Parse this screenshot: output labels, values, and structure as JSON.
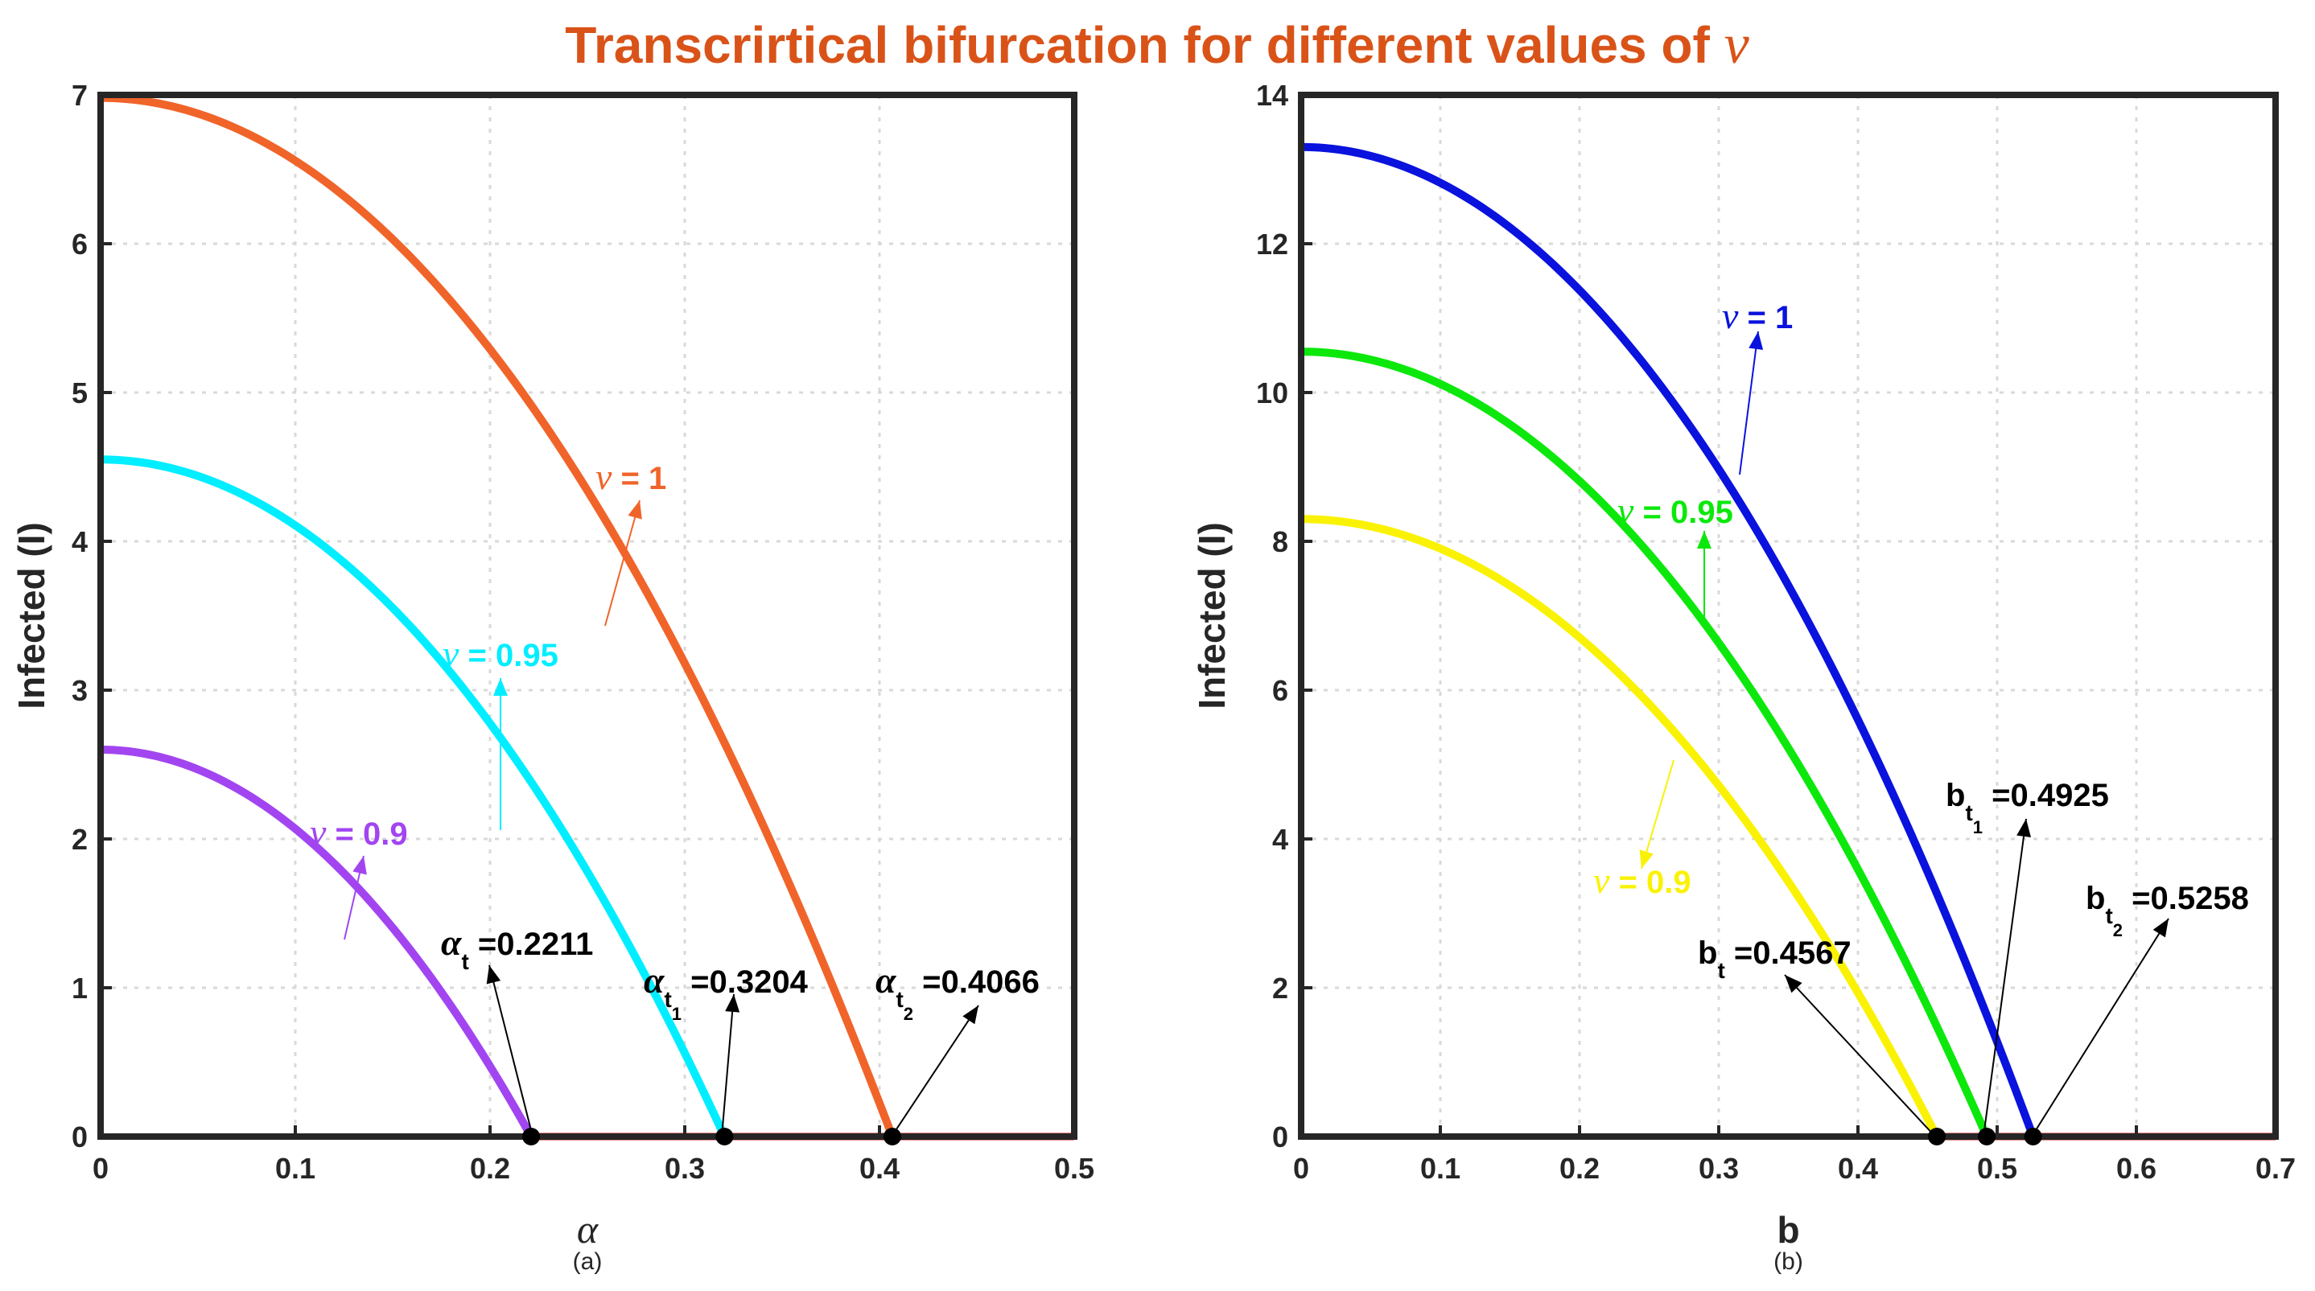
{
  "title": "Transcrirtical bifurcation for different values of",
  "title_symbol": "ν",
  "title_color": "#D95319",
  "chart_data": [
    {
      "type": "line",
      "panel_label": "(a)",
      "xlabel": "α",
      "ylabel": "Infected (I)",
      "xlim": [
        0,
        0.5
      ],
      "ylim": [
        0,
        7
      ],
      "xticks": [
        "0",
        "0.1",
        "0.2",
        "0.3",
        "0.4",
        "0.5"
      ],
      "yticks": [
        "0",
        "1",
        "2",
        "3",
        "4",
        "5",
        "6",
        "7"
      ],
      "grid": true,
      "series": [
        {
          "name": "ν = 1",
          "nu_value": "1",
          "color": "#F0642A",
          "I0": 6.98,
          "threshold": 0.4066
        },
        {
          "name": "ν = 0.95",
          "nu_value": "0.95",
          "color": "#00EEFF",
          "I0": 4.55,
          "threshold": 0.3204
        },
        {
          "name": "ν = 0.9",
          "nu_value": "0.9",
          "color": "#A245F0",
          "I0": 2.6,
          "threshold": 0.2211
        }
      ],
      "zero_line": {
        "color": "#EE1111",
        "x_range": [
          0.2211,
          0.5
        ]
      },
      "points": [
        {
          "x": 0.2211,
          "y": 0
        },
        {
          "x": 0.3204,
          "y": 0
        },
        {
          "x": 0.4066,
          "y": 0
        }
      ],
      "annotations": [
        {
          "symbol": "α",
          "sub": "t",
          "subsub": "",
          "value": "=0.2211"
        },
        {
          "symbol": "α",
          "sub": "t",
          "subsub": "1",
          "value": "=0.3204"
        },
        {
          "symbol": "α",
          "sub": "t",
          "subsub": "2",
          "value": "=0.4066"
        }
      ]
    },
    {
      "type": "line",
      "panel_label": "(b)",
      "xlabel": "b",
      "ylabel": "Infected (I)",
      "xlim": [
        0,
        0.7
      ],
      "ylim": [
        0,
        14
      ],
      "xticks": [
        "0",
        "0.1",
        "0.2",
        "0.3",
        "0.4",
        "0.5",
        "0.6",
        "0.7"
      ],
      "yticks": [
        "0",
        "2",
        "4",
        "6",
        "8",
        "10",
        "12",
        "14"
      ],
      "grid": true,
      "series": [
        {
          "name": "ν = 1",
          "nu_value": "1",
          "color": "#0A12DD",
          "I0": 13.3,
          "threshold": 0.5258
        },
        {
          "name": "ν = 0.95",
          "nu_value": "0.95",
          "color": "#0CE80C",
          "I0": 10.55,
          "threshold": 0.4925
        },
        {
          "name": "ν = 0.9",
          "nu_value": "0.9",
          "color": "#FAF205",
          "I0": 8.3,
          "threshold": 0.4567
        }
      ],
      "zero_line": {
        "color": "#EE1111",
        "x_range": [
          0.4567,
          0.7
        ]
      },
      "points": [
        {
          "x": 0.4567,
          "y": 0
        },
        {
          "x": 0.4925,
          "y": 0
        },
        {
          "x": 0.5258,
          "y": 0
        }
      ],
      "annotations": [
        {
          "symbol": "b",
          "sub": "t",
          "subsub": "",
          "value": "=0.4567"
        },
        {
          "symbol": "b",
          "sub": "t",
          "subsub": "1",
          "value": "=0.4925"
        },
        {
          "symbol": "b",
          "sub": "t",
          "subsub": "2",
          "value": "=0.5258"
        }
      ]
    }
  ]
}
